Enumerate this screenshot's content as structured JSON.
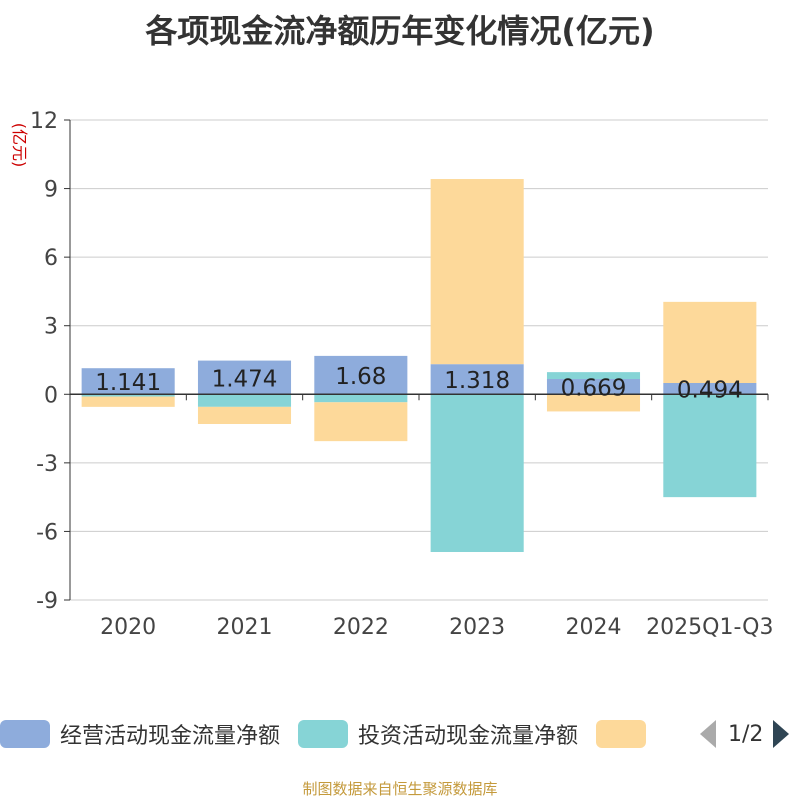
{
  "chart_data": {
    "type": "bar",
    "stacked": true,
    "title": "各项现金流净额历年变化情况(亿元)",
    "ylabel": "(亿元)",
    "xlabel": "",
    "categories": [
      "2020",
      "2021",
      "2022",
      "2023",
      "2024",
      "2025Q1-Q3"
    ],
    "ylim": [
      -9,
      12
    ],
    "yticks": [
      12,
      9,
      6,
      3,
      0,
      -3,
      -6,
      -9
    ],
    "grid": true,
    "series": [
      {
        "name": "经营活动现金流量净额",
        "color": "#8eacdc",
        "values": [
          1.141,
          1.474,
          1.68,
          1.318,
          0.669,
          0.494
        ],
        "labels": [
          "1.141",
          "1.474",
          "1.68",
          "1.318",
          "0.669",
          "0.494"
        ]
      },
      {
        "name": "投资活动现金流量净额",
        "color": "#86d4d6",
        "values": [
          -0.1,
          -0.55,
          -0.35,
          -6.9,
          0.3,
          -4.5
        ]
      },
      {
        "name": "",
        "color": "#fdd99a",
        "values": [
          -0.45,
          -0.75,
          -1.7,
          8.1,
          -0.75,
          3.55
        ]
      }
    ],
    "legend_position": "bottom",
    "legend_page": "1/2",
    "source": "制图数据来自恒生聚源数据库"
  }
}
